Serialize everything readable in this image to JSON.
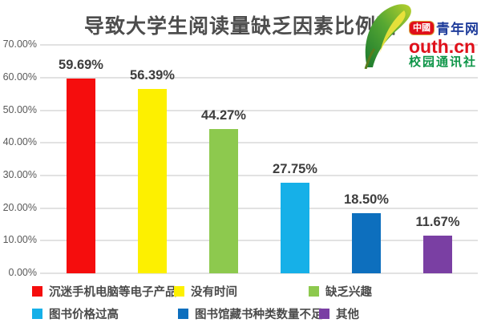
{
  "chart_data": {
    "type": "bar",
    "title": "导致大学生阅读量缺乏因素比例图",
    "categories": [
      "沉迷手机电脑等电子产品",
      "没有时间",
      "缺乏兴趣",
      "图书价格过高",
      "图书馆藏书种类数量不足",
      "其他"
    ],
    "values": [
      59.69,
      56.39,
      44.27,
      27.75,
      18.5,
      11.67
    ],
    "value_labels": [
      "59.69%",
      "56.39%",
      "44.27%",
      "27.75%",
      "18.50%",
      "11.67%"
    ],
    "bar_colors": [
      "#f50d0d",
      "#fdf000",
      "#8dc94e",
      "#16b0e8",
      "#0d6fbe",
      "#7a3fa3"
    ],
    "ylim": [
      0,
      70
    ],
    "y_tick_labels": [
      "0.00%",
      "10.00%",
      "20.00%",
      "30.00%",
      "40.00%",
      "50.00%",
      "60.00%",
      "70.00%"
    ],
    "grid": true,
    "legend_position": "bottom",
    "legend_rows": [
      [
        0,
        1,
        2
      ],
      [
        3,
        4,
        5
      ]
    ]
  },
  "logo": {
    "badge": "中國",
    "site_name": "青年网",
    "domain": "outh.cn",
    "subtitle": "校园通讯社"
  },
  "colors": {
    "background": "#ffffff",
    "grid": "#e2e2e2",
    "title": "#4d4d4d",
    "tick_label": "#595959",
    "value_label": "#3d3d3d",
    "legend_text": "#4a4a4a",
    "logo_red": "#e0101a",
    "logo_blue": "#1e3c9b",
    "logo_green": "#0e9548"
  }
}
